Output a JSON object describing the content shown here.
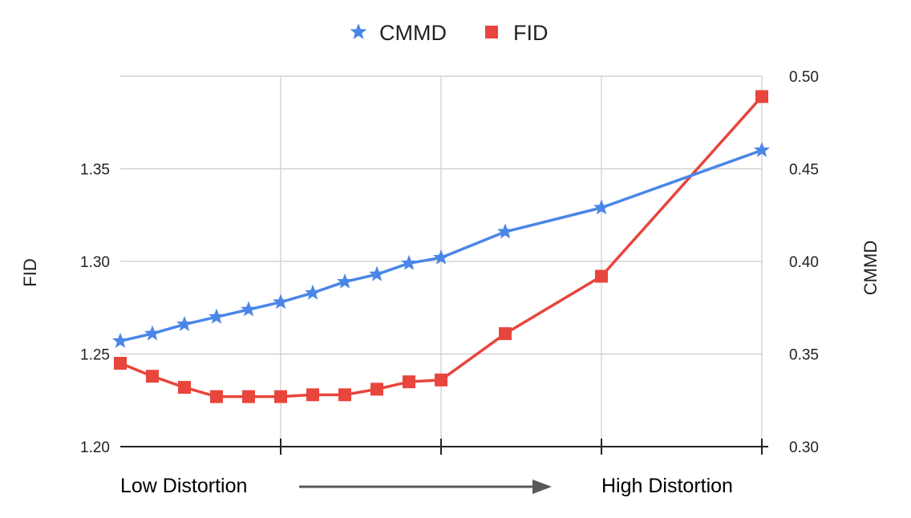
{
  "chart_data": {
    "type": "line",
    "colors": {
      "CMMD": "#4a86e8",
      "FID": "#e8453c",
      "grid": "#cccccc",
      "axis": "#222222",
      "arrow": "#595959"
    },
    "legend": {
      "placement": "top-center",
      "entries": [
        "CMMD",
        "FID"
      ]
    },
    "grid": true,
    "x": [
      0,
      1,
      2,
      3,
      4,
      5,
      6,
      7,
      8,
      9,
      10,
      12,
      15,
      20
    ],
    "series": [
      {
        "name": "CMMD",
        "axis": "right",
        "marker": "star",
        "values": [
          0.357,
          0.361,
          0.366,
          0.37,
          0.374,
          0.378,
          0.383,
          0.389,
          0.393,
          0.399,
          0.402,
          0.416,
          0.429,
          0.46
        ]
      },
      {
        "name": "FID",
        "axis": "left",
        "marker": "square",
        "values": [
          1.245,
          1.238,
          1.232,
          1.227,
          1.227,
          1.227,
          1.228,
          1.228,
          1.231,
          1.235,
          1.236,
          1.261,
          1.292,
          1.389
        ]
      }
    ],
    "xlim": [
      0,
      20
    ],
    "x_gridlines": [
      5,
      10,
      15,
      20
    ],
    "y_left": {
      "label": "FID",
      "lim": [
        1.2,
        1.4
      ],
      "ticks": [
        "1.20",
        "1.25",
        "1.30",
        "1.35"
      ]
    },
    "y_right": {
      "label": "CMMD",
      "lim": [
        0.3,
        0.5
      ],
      "ticks": [
        "0.30",
        "0.35",
        "0.40",
        "0.45",
        "0.50"
      ]
    },
    "annotations": {
      "low": "Low Distortion",
      "high": "High Distortion"
    }
  }
}
